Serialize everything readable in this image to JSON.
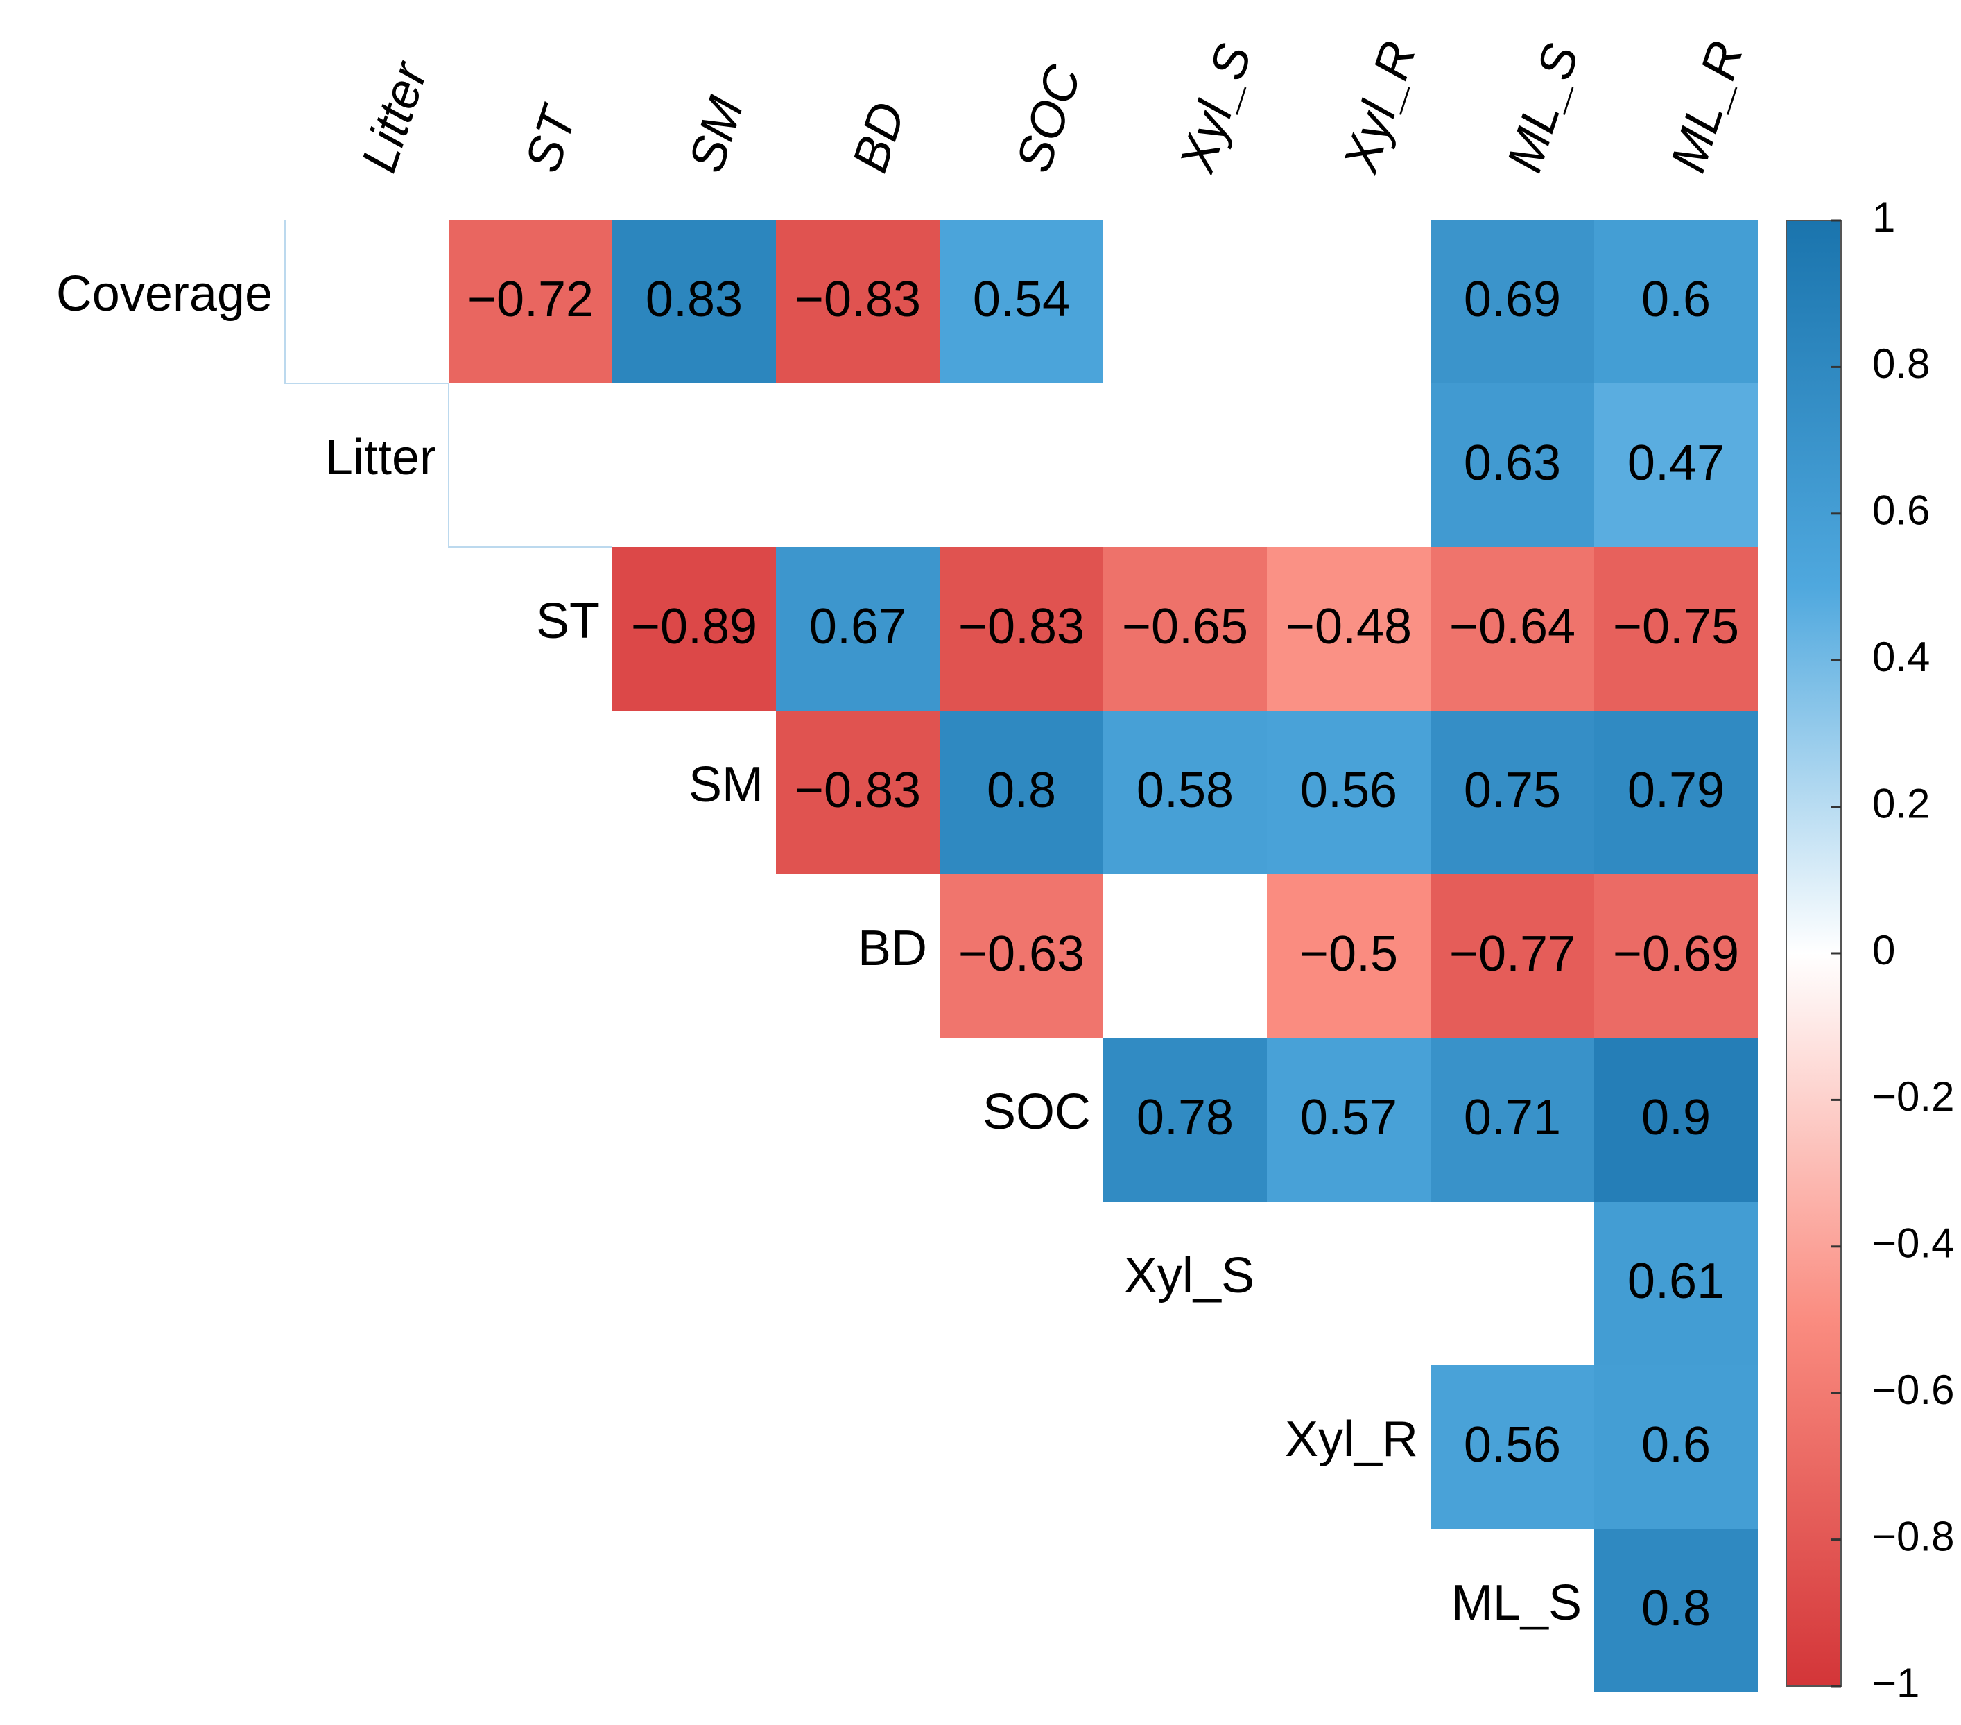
{
  "chart_data": {
    "type": "heatmap",
    "rows": [
      "Coverage",
      "Litter",
      "ST",
      "SM",
      "BD",
      "SOC",
      "Xyl_S",
      "Xyl_R",
      "ML_S"
    ],
    "columns": [
      "Litter",
      "ST",
      "SM",
      "BD",
      "SOC",
      "Xyl_S",
      "Xyl_R",
      "ML_S",
      "ML_R"
    ],
    "values": [
      [
        null,
        -0.72,
        0.83,
        -0.83,
        0.54,
        null,
        null,
        0.69,
        0.6
      ],
      [
        null,
        null,
        null,
        null,
        null,
        null,
        null,
        0.63,
        0.47
      ],
      [
        null,
        null,
        -0.89,
        0.67,
        -0.83,
        -0.65,
        -0.48,
        -0.64,
        -0.75
      ],
      [
        null,
        null,
        null,
        -0.83,
        0.8,
        0.58,
        0.56,
        0.75,
        0.79
      ],
      [
        null,
        null,
        null,
        null,
        -0.63,
        null,
        -0.5,
        -0.77,
        -0.69
      ],
      [
        null,
        null,
        null,
        null,
        null,
        0.78,
        0.57,
        0.71,
        0.9
      ],
      [
        null,
        null,
        null,
        null,
        null,
        null,
        null,
        null,
        0.61
      ],
      [
        null,
        null,
        null,
        null,
        null,
        null,
        null,
        0.56,
        0.6
      ],
      [
        null,
        null,
        null,
        null,
        null,
        null,
        null,
        null,
        0.8
      ]
    ],
    "value_labels": [
      [
        null,
        "−0.72",
        "0.83",
        "−0.83",
        "0.54",
        null,
        null,
        "0.69",
        "0.6"
      ],
      [
        null,
        null,
        null,
        null,
        null,
        null,
        null,
        "0.63",
        "0.47"
      ],
      [
        null,
        null,
        "−0.89",
        "0.67",
        "−0.83",
        "−0.65",
        "−0.48",
        "−0.64",
        "−0.75"
      ],
      [
        null,
        null,
        null,
        "−0.83",
        "0.8",
        "0.58",
        "0.56",
        "0.75",
        "0.79"
      ],
      [
        null,
        null,
        null,
        null,
        "−0.63",
        null,
        "−0.5",
        "−0.77",
        "−0.69"
      ],
      [
        null,
        null,
        null,
        null,
        null,
        "0.78",
        "0.57",
        "0.71",
        "0.9"
      ],
      [
        null,
        null,
        null,
        null,
        null,
        null,
        null,
        null,
        "0.61"
      ],
      [
        null,
        null,
        null,
        null,
        null,
        null,
        null,
        "0.56",
        "0.6"
      ],
      [
        null,
        null,
        null,
        null,
        null,
        null,
        null,
        null,
        "0.8"
      ]
    ],
    "colormap": [
      "#d33538",
      "#fa8c80",
      "#ffffff",
      "#4fa8de",
      "#1a74ad"
    ],
    "clim": [
      -1,
      1
    ],
    "cticks": [
      1,
      0.8,
      0.6,
      0.4,
      0.2,
      0,
      {
        "value": -0.2,
        "label": "−0.2"
      },
      {
        "value": -0.4,
        "label": "−0.4"
      },
      {
        "value": -0.6,
        "label": "−0.6"
      },
      {
        "value": -0.8,
        "label": "−0.8"
      },
      {
        "value": -1,
        "label": "−1"
      }
    ]
  }
}
